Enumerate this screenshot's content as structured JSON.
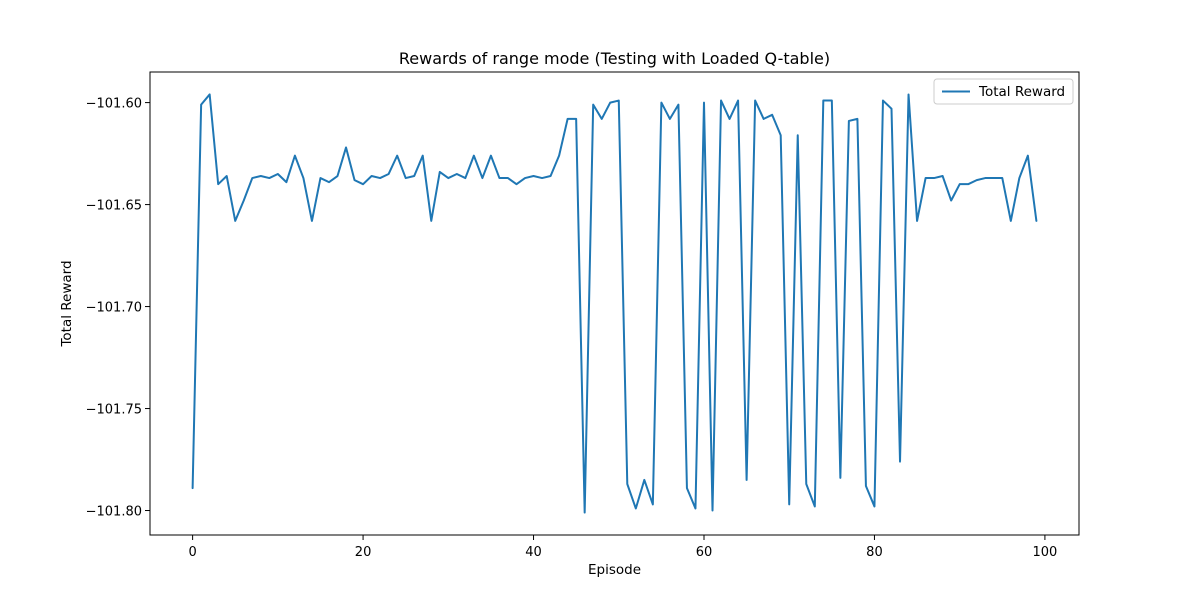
{
  "chart_data": {
    "type": "line",
    "title": "Rewards of range mode (Testing with Loaded Q-table)",
    "xlabel": "Episode",
    "ylabel": "Total Reward",
    "xlim": [
      -5,
      104
    ],
    "ylim": [
      -101.812,
      -101.585
    ],
    "x_ticks": [
      0,
      20,
      40,
      60,
      80,
      100
    ],
    "y_ticks": [
      -101.8,
      -101.75,
      -101.7,
      -101.65,
      -101.6
    ],
    "y_tick_labels": [
      "−101.80",
      "−101.75",
      "−101.70",
      "−101.65",
      "−101.60"
    ],
    "grid": false,
    "legend_position": "top-right",
    "series": [
      {
        "name": "Total Reward",
        "color": "#1f77b4",
        "x": [
          0,
          1,
          2,
          3,
          4,
          5,
          6,
          7,
          8,
          9,
          10,
          11,
          12,
          13,
          14,
          15,
          16,
          17,
          18,
          19,
          20,
          21,
          22,
          23,
          24,
          25,
          26,
          27,
          28,
          29,
          30,
          31,
          32,
          33,
          34,
          35,
          36,
          37,
          38,
          39,
          40,
          41,
          42,
          43,
          44,
          45,
          46,
          47,
          48,
          49,
          50,
          51,
          52,
          53,
          54,
          55,
          56,
          57,
          58,
          59,
          60,
          61,
          62,
          63,
          64,
          65,
          66,
          67,
          68,
          69,
          70,
          71,
          72,
          73,
          74,
          75,
          76,
          77,
          78,
          79,
          80,
          81,
          82,
          83,
          84,
          85,
          86,
          87,
          88,
          89,
          90,
          91,
          92,
          93,
          94,
          95,
          96,
          97,
          98,
          99
        ],
        "y": [
          -101.789,
          -101.601,
          -101.596,
          -101.64,
          -101.636,
          -101.658,
          -101.648,
          -101.637,
          -101.636,
          -101.637,
          -101.635,
          -101.639,
          -101.626,
          -101.637,
          -101.658,
          -101.637,
          -101.639,
          -101.636,
          -101.622,
          -101.638,
          -101.64,
          -101.636,
          -101.637,
          -101.635,
          -101.626,
          -101.637,
          -101.636,
          -101.626,
          -101.658,
          -101.634,
          -101.637,
          -101.635,
          -101.637,
          -101.626,
          -101.637,
          -101.626,
          -101.637,
          -101.637,
          -101.64,
          -101.637,
          -101.636,
          -101.637,
          -101.636,
          -101.626,
          -101.608,
          -101.608,
          -101.801,
          -101.601,
          -101.608,
          -101.6,
          -101.599,
          -101.787,
          -101.799,
          -101.785,
          -101.797,
          -101.6,
          -101.608,
          -101.601,
          -101.789,
          -101.799,
          -101.6,
          -101.8,
          -101.599,
          -101.608,
          -101.599,
          -101.785,
          -101.599,
          -101.608,
          -101.606,
          -101.616,
          -101.797,
          -101.616,
          -101.787,
          -101.798,
          -101.599,
          -101.599,
          -101.784,
          -101.609,
          -101.608,
          -101.788,
          -101.798,
          -101.599,
          -101.603,
          -101.776,
          -101.596,
          -101.658,
          -101.637,
          -101.637,
          -101.636,
          -101.648,
          -101.64,
          -101.64,
          -101.638,
          -101.637,
          -101.637,
          -101.637,
          -101.658,
          -101.637,
          -101.626,
          -101.658
        ]
      }
    ]
  }
}
